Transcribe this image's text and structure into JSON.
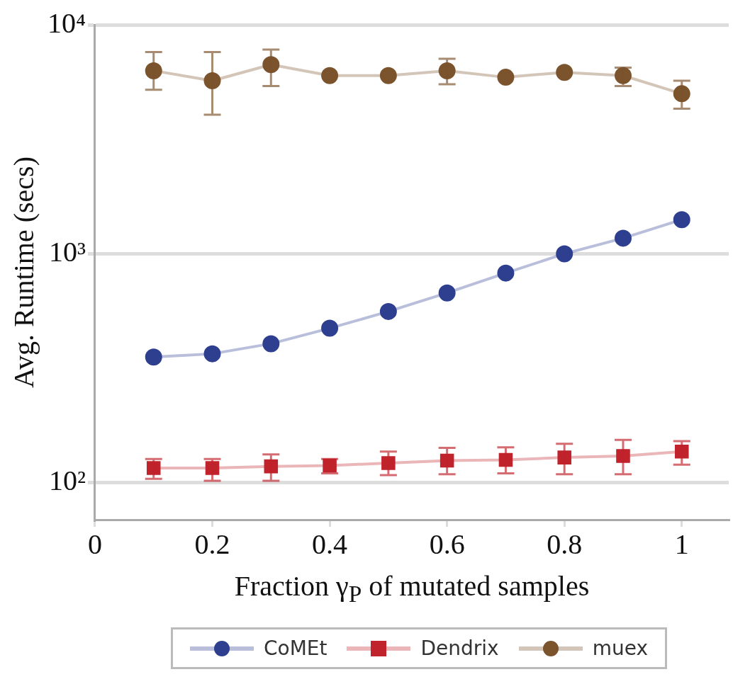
{
  "chart_data": {
    "type": "line",
    "xlabel": "Fraction  γ$_{P}$ of mutated samples",
    "ylabel": "Avg. Runtime (secs)",
    "x": [
      0.1,
      0.2,
      0.3,
      0.4,
      0.5,
      0.6,
      0.7,
      0.8,
      0.9,
      1.0
    ],
    "series": [
      {
        "name": "CoMEt",
        "color": "#2e3f8f",
        "marker": "circle",
        "values": [
          354,
          366,
          405,
          473,
          560,
          675,
          824,
          1000,
          1170,
          1410
        ]
      },
      {
        "name": "Dendrix",
        "color": "#c0232b",
        "marker": "square",
        "values": [
          116,
          116,
          118,
          119,
          122,
          125,
          126,
          129,
          131,
          137
        ],
        "errors": [
          [
            104,
            127
          ],
          [
            102,
            127
          ],
          [
            102,
            133
          ],
          [
            110,
            127
          ],
          [
            108,
            137
          ],
          [
            109,
            142
          ],
          [
            110,
            143
          ],
          [
            109,
            148
          ],
          [
            109,
            154
          ],
          [
            120,
            152
          ]
        ]
      },
      {
        "name": "muex",
        "color": "#7b532c",
        "marker": "circle",
        "values": [
          6300,
          5700,
          6700,
          6000,
          6000,
          6300,
          5900,
          6200,
          6000,
          5000
        ],
        "errors": [
          [
            5200,
            7600
          ],
          [
            4050,
            7600
          ],
          [
            5400,
            7800
          ],
          null,
          null,
          [
            5500,
            7100
          ],
          null,
          null,
          [
            5400,
            6500
          ],
          [
            4300,
            5700
          ]
        ]
      }
    ],
    "log": "y",
    "xlim": [
      0,
      1.08
    ],
    "xticks": [
      0,
      0.2,
      0.4,
      0.6,
      0.8,
      1
    ],
    "ylim": [
      69,
      10000
    ],
    "yticks": [
      {
        "value": 100,
        "label": "10²"
      },
      {
        "value": 1000,
        "label": "10³"
      },
      {
        "value": 10000,
        "label": "10⁴"
      }
    ],
    "grid": "y",
    "legend": "bottom"
  }
}
